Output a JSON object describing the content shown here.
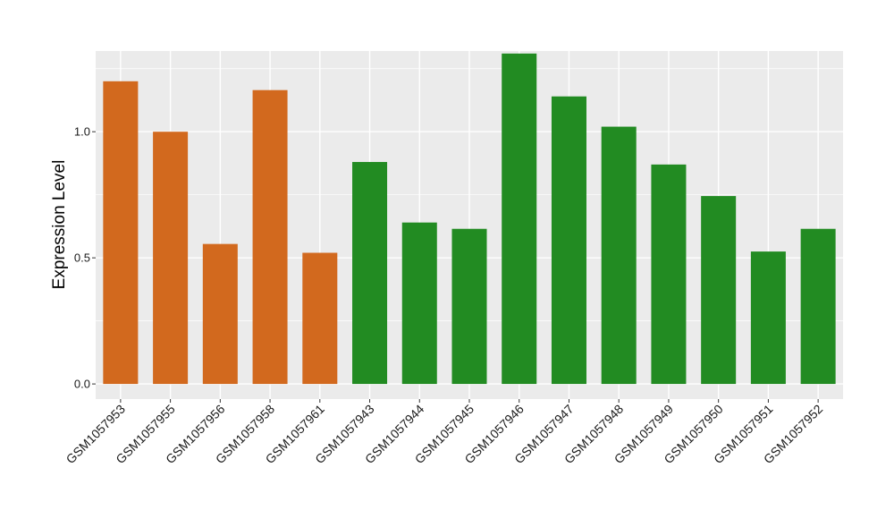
{
  "chart_data": {
    "type": "bar",
    "title": "",
    "xlabel": "",
    "ylabel": "Expression Level",
    "ylim": [
      -0.06,
      1.32
    ],
    "yticks": [
      0.0,
      0.5,
      1.0
    ],
    "ytick_labels": [
      "0.0",
      "0.5",
      "1.0"
    ],
    "grid": true,
    "legend": "none",
    "categories": [
      "GSM1057953",
      "GSM1057955",
      "GSM1057956",
      "GSM1057958",
      "GSM1057961",
      "GSM1057943",
      "GSM1057944",
      "GSM1057945",
      "GSM1057946",
      "GSM1057947",
      "GSM1057948",
      "GSM1057949",
      "GSM1057950",
      "GSM1057951",
      "GSM1057952"
    ],
    "values": [
      1.2,
      1.0,
      0.555,
      1.165,
      0.52,
      0.88,
      0.64,
      0.615,
      1.31,
      1.14,
      1.02,
      0.87,
      0.745,
      0.525,
      0.615
    ],
    "group_index": [
      0,
      0,
      0,
      0,
      0,
      1,
      1,
      1,
      1,
      1,
      1,
      1,
      1,
      1,
      1
    ],
    "group_colors": [
      "#d2691e",
      "#228b22"
    ],
    "panel_color": "#ebebeb",
    "grid_color": "#ffffff"
  }
}
